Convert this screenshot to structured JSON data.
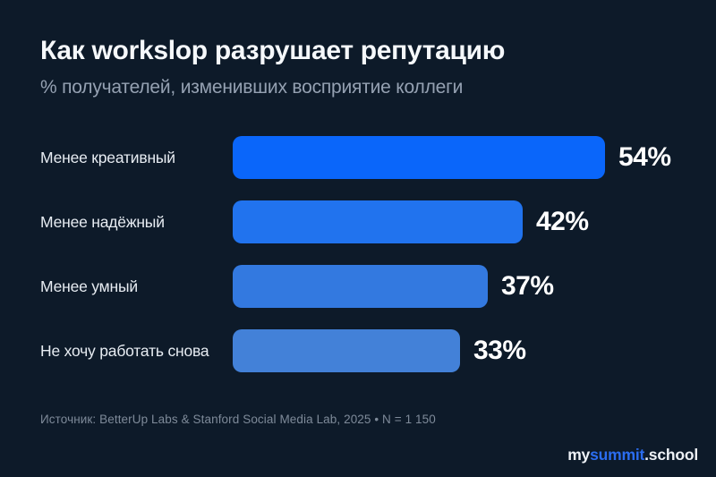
{
  "page": {
    "background_color": "#0d1a29"
  },
  "chart_data": {
    "type": "bar",
    "orientation": "horizontal",
    "title": "Как workslop разрушает репутацию",
    "subtitle": "% получателей, изменивших восприятие коллеги",
    "categories": [
      "Менее креативный",
      "Менее надёжный",
      "Менее умный",
      "Не хочу работать снова"
    ],
    "values": [
      54,
      42,
      37,
      33
    ],
    "value_labels": [
      "54%",
      "42%",
      "37%",
      "33%"
    ],
    "bar_colors": [
      "#0a66fa",
      "#2173ee",
      "#3379e0",
      "#4381d8"
    ],
    "xlim": [
      0,
      54
    ],
    "grid": false,
    "legend": "none",
    "value_label_position": "right-of-bar"
  },
  "footer": {
    "source": "Источник: BetterUp Labs & Stanford Social Media Lab, 2025 • N = 1 150",
    "logo": {
      "prefix": "my",
      "accent": "summit",
      "suffix": ".school",
      "accent_color": "#2b6df0"
    }
  }
}
